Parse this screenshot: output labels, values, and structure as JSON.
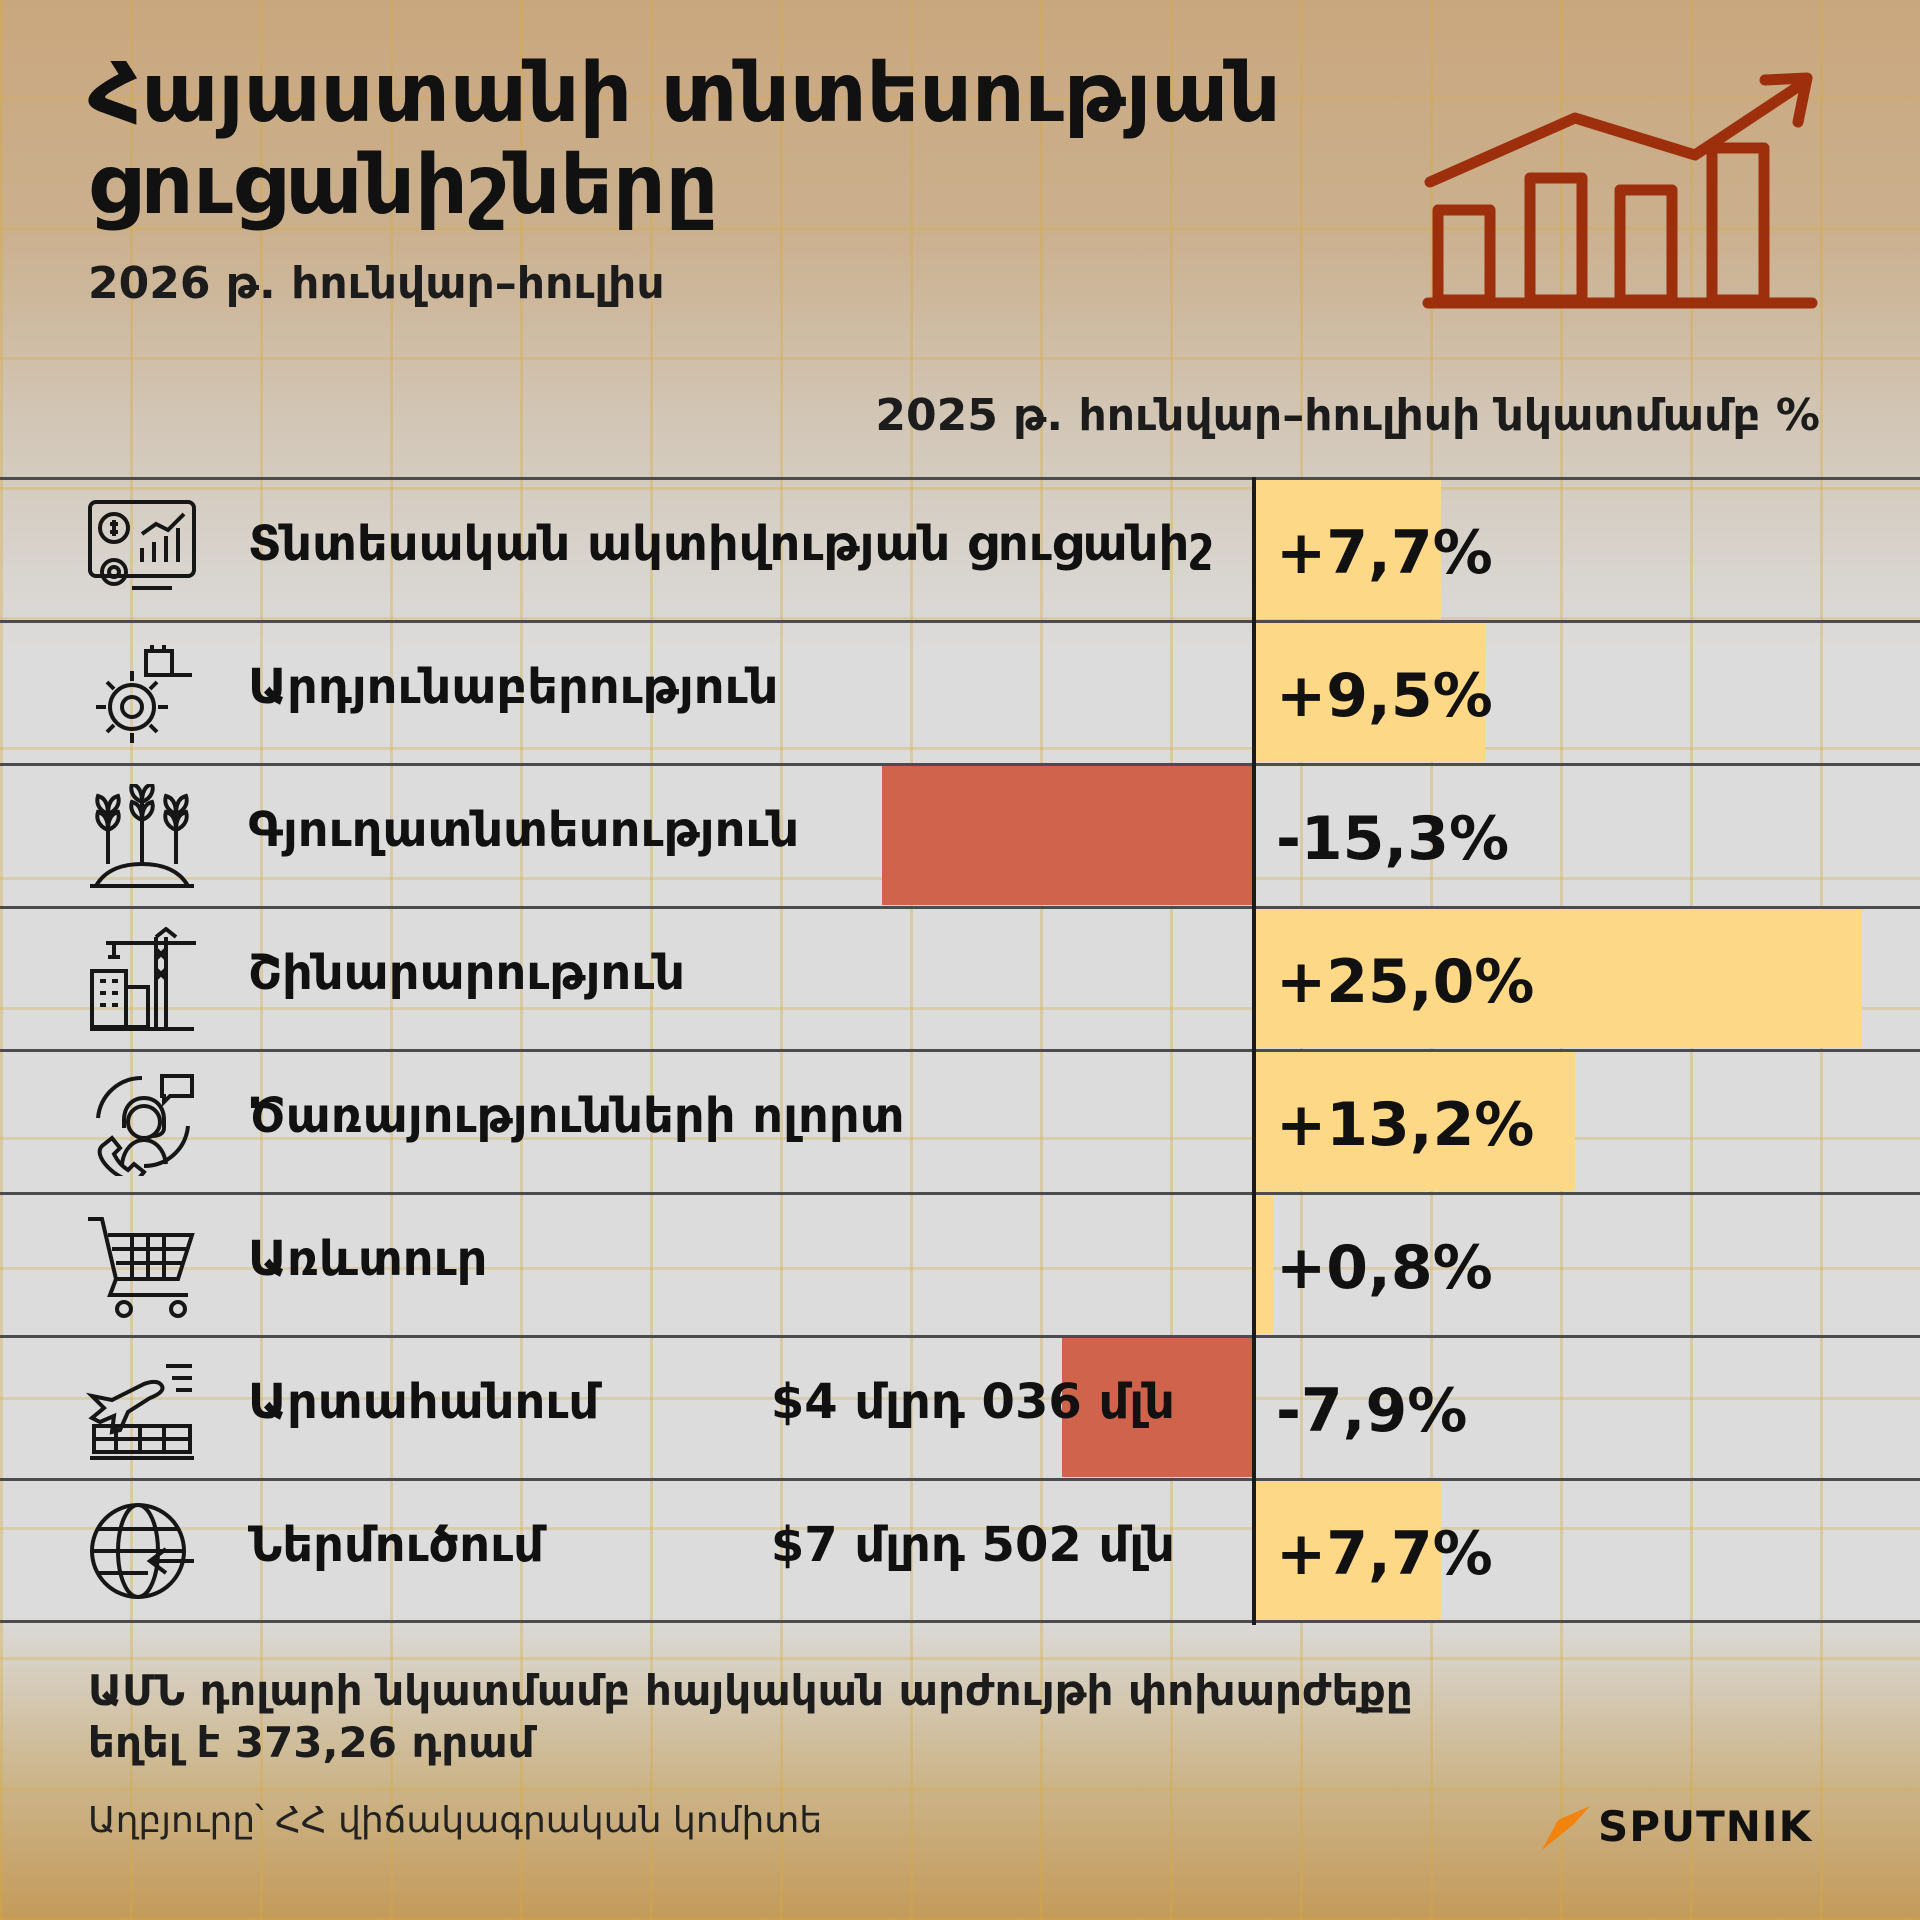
{
  "title_line1": "Հայաստանի տնտեսության",
  "title_line2": "ցուցանիշները",
  "subtitle": "2026 թ. հունվար–հուլիս",
  "column_header": "2025 թ. հունվար–հուլիսի նկատմամբ  %",
  "colors": {
    "positive_bar": "#fdd886",
    "negative_bar": "#cf634b",
    "logo_color": "#9e2f0c",
    "brand_accent": "#f2830d"
  },
  "chart_data": {
    "type": "bar",
    "orientation": "horizontal",
    "unit": "%",
    "categories": [
      "Տնտեսական ակտիվության ցուցանիշ",
      "Արդյունաբերություն",
      "Գյուղատնտեսություն",
      "Շինարարություն",
      "Ծառայությունների ոլորտ",
      "Առևտուր",
      "Արտահանում",
      "Ներմուծում"
    ],
    "values": [
      7.7,
      9.5,
      -15.3,
      25.0,
      13.2,
      0.8,
      -7.9,
      7.7
    ],
    "value_labels": [
      "+7,7%",
      "+9,5%",
      "-15,3%",
      "+25,0%",
      "+13,2%",
      "+0,8%",
      "-7,9%",
      "+7,7%"
    ],
    "amounts": [
      "",
      "",
      "",
      "",
      "",
      "",
      "$4 մլրդ 036 մլն",
      "$7 մլրդ 502 մլն"
    ],
    "icons": [
      "dashboard-chart-icon",
      "gear-factory-icon",
      "wheat-crops-icon",
      "construction-crane-icon",
      "customer-service-icon",
      "shopping-cart-icon",
      "cargo-export-plane-icon",
      "globe-import-arrow-icon"
    ],
    "grid": false
  },
  "footnote_line1": "ԱՄՆ դոլարի նկատմամբ հայկական արժույթի փոխարժեքը",
  "footnote_line2": "եղել է 373,26 դրամ",
  "source": "Աղբյուրը՝ ՀՀ վիճակագրական կոմիտե",
  "brand": {
    "name": "SPUTNIK",
    "icon": "sputnik-logo-icon"
  }
}
